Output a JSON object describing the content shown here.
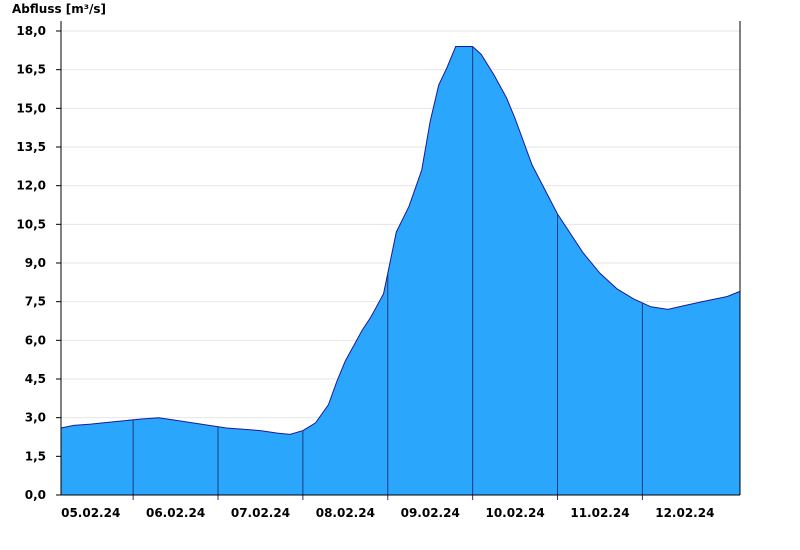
{
  "chart_data": {
    "type": "area",
    "title": "",
    "ylabel": "Abfluss [m³/s]",
    "xlabel": "",
    "ylim": [
      0,
      18
    ],
    "yticks": [
      "0,0",
      "1,5",
      "3,0",
      "4,5",
      "6,0",
      "7,5",
      "9,0",
      "10,5",
      "12,0",
      "13,5",
      "15,0",
      "16,5",
      "18,0"
    ],
    "xticks": [
      "05.02.24",
      "06.02.24",
      "07.02.24",
      "08.02.24",
      "09.02.24",
      "10.02.24",
      "11.02.24",
      "12.02.24"
    ],
    "x_range_days": [
      -0.35,
      7.65
    ],
    "grid": true,
    "fill_color": "#2aa7fd",
    "line_color": "#1a1a99",
    "series": [
      {
        "t_days": [
          -0.35,
          -0.2,
          0.0,
          0.3,
          0.6,
          0.8,
          1.0,
          1.3,
          1.6,
          1.8,
          2.0,
          2.2,
          2.35,
          2.5,
          2.6,
          2.65,
          2.8,
          2.9,
          3.0,
          3.1,
          3.2,
          3.3,
          3.45,
          3.6,
          3.75,
          3.9,
          4.0,
          4.1,
          4.2,
          4.3,
          4.5,
          4.6,
          4.75,
          4.9,
          5.0,
          5.2,
          5.5,
          5.8,
          6.0,
          6.2,
          6.4,
          6.6,
          6.8,
          7.0,
          7.2,
          7.5,
          7.65
        ],
        "values": [
          2.6,
          2.7,
          2.75,
          2.85,
          2.95,
          3.0,
          2.9,
          2.75,
          2.6,
          2.55,
          2.5,
          2.4,
          2.35,
          2.5,
          2.7,
          2.8,
          3.5,
          4.4,
          5.2,
          5.8,
          6.4,
          6.9,
          7.8,
          10.2,
          11.2,
          12.6,
          14.5,
          15.9,
          16.6,
          17.4,
          17.4,
          17.1,
          16.3,
          15.4,
          14.6,
          12.8,
          10.9,
          9.4,
          8.6,
          8.0,
          7.6,
          7.3,
          7.2,
          7.35,
          7.5,
          7.7,
          7.9
        ]
      }
    ],
    "day_separators": [
      0.5,
      1.5,
      2.5,
      3.5,
      4.5,
      5.5,
      6.5
    ]
  }
}
